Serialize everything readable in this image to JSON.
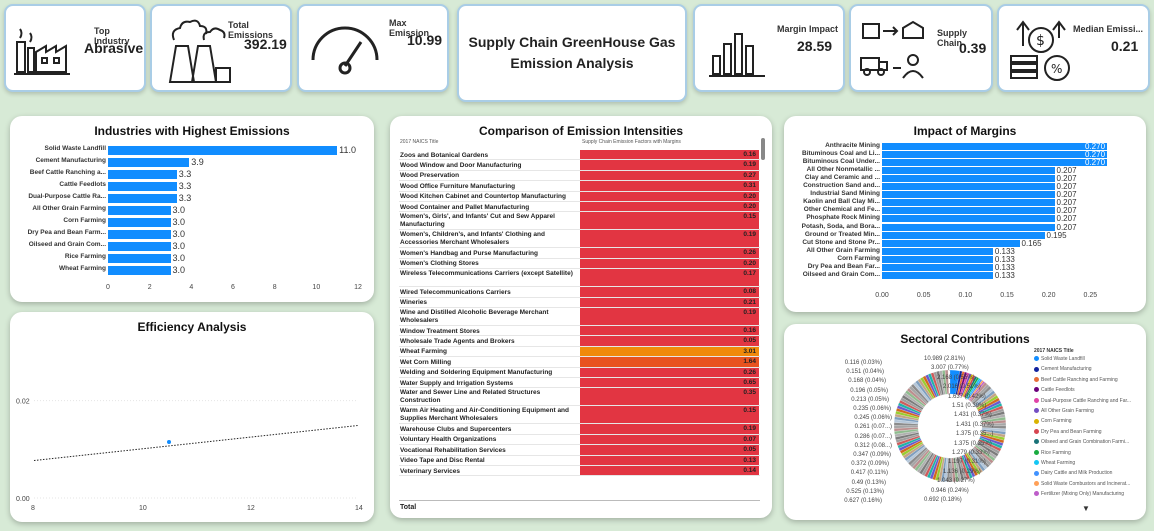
{
  "kpis": {
    "top_industry": {
      "label": "Top Industry",
      "value": "Abrasive"
    },
    "total_emissions": {
      "label": "Total Emissions",
      "value": "392.19"
    },
    "max_emission": {
      "label": "Max Emission",
      "value": "10.99"
    },
    "margin_impact": {
      "label": "Margin Impact",
      "value": "28.59"
    },
    "supply_chain": {
      "label": "Supply Chain",
      "value": "0.39"
    },
    "median_emission": {
      "label": "Median Emissi...",
      "value": "0.21"
    }
  },
  "dashboard_title": "Supply Chain GreenHouse Gas Emission Analysis",
  "industries_chart": {
    "title": "Industries with Highest Emissions",
    "ticks": [
      "0",
      "2",
      "4",
      "6",
      "8",
      "10",
      "12"
    ]
  },
  "efficiency": {
    "title": "Efficiency Analysis",
    "yticks": [
      "0.02",
      "0.00"
    ],
    "xticks": [
      "8",
      "10",
      "12",
      "14"
    ]
  },
  "intensity_table": {
    "title": "Comparison of Emission Intensities",
    "col1": "2017 NAICS Title",
    "col2": "Supply Chain Emission Factors with Margins",
    "rows": [
      {
        "name": "Zoos and Botanical Gardens",
        "value": "0.16",
        "color": "#e23542"
      },
      {
        "name": "Wood Window and Door Manufacturing",
        "value": "0.19",
        "color": "#e23542"
      },
      {
        "name": "Wood Preservation",
        "value": "0.27",
        "color": "#e23542"
      },
      {
        "name": "Wood Office Furniture Manufacturing",
        "value": "0.31",
        "color": "#e23542"
      },
      {
        "name": "Wood Kitchen Cabinet and Countertop Manufacturing",
        "value": "0.20",
        "color": "#e23542"
      },
      {
        "name": "Wood Container and Pallet Manufacturing",
        "value": "0.20",
        "color": "#e23542"
      },
      {
        "name": "Women's, Girls', and Infants' Cut and Sew Apparel Manufacturing",
        "value": "0.15",
        "color": "#e23542"
      },
      {
        "name": "Women's, Children's, and Infants' Clothing and Accessories Merchant Wholesalers",
        "value": "0.19",
        "color": "#e23542"
      },
      {
        "name": "Women's Handbag and Purse Manufacturing",
        "value": "0.26",
        "color": "#e23542"
      },
      {
        "name": "Women's Clothing Stores",
        "value": "0.20",
        "color": "#e23542"
      },
      {
        "name": "Wireless Telecommunications Carriers (except Satellite)",
        "value": "0.17",
        "color": "#e23542"
      },
      {
        "name": "Wired Telecommunications Carriers",
        "value": "0.08",
        "color": "#e23542"
      },
      {
        "name": "Wineries",
        "value": "0.21",
        "color": "#e23542"
      },
      {
        "name": "Wine and Distilled Alcoholic Beverage Merchant Wholesalers",
        "value": "0.19",
        "color": "#e23542"
      },
      {
        "name": "Window Treatment Stores",
        "value": "0.16",
        "color": "#e23542"
      },
      {
        "name": "Wholesale Trade Agents and Brokers",
        "value": "0.05",
        "color": "#e23542"
      },
      {
        "name": "Wheat Farming",
        "value": "3.01",
        "color": "#f08a0a"
      },
      {
        "name": "Wet Corn Milling",
        "value": "1.64",
        "color": "#e8531f"
      },
      {
        "name": "Welding and Soldering Equipment Manufacturing",
        "value": "0.26",
        "color": "#e23542"
      },
      {
        "name": "Water Supply and Irrigation Systems",
        "value": "0.65",
        "color": "#e23542"
      },
      {
        "name": "Water and Sewer Line and Related Structures Construction",
        "value": "0.35",
        "color": "#e23542"
      },
      {
        "name": "Warm Air Heating and Air-Conditioning Equipment and Supplies Merchant Wholesalers",
        "value": "0.15",
        "color": "#e23542"
      },
      {
        "name": "Warehouse Clubs and Supercenters",
        "value": "0.19",
        "color": "#e23542"
      },
      {
        "name": "Voluntary Health Organizations",
        "value": "0.07",
        "color": "#e23542"
      },
      {
        "name": "Vocational Rehabilitation Services",
        "value": "0.05",
        "color": "#e23542"
      },
      {
        "name": "Video Tape and Disc Rental",
        "value": "0.13",
        "color": "#e23542"
      },
      {
        "name": "Veterinary Services",
        "value": "0.14",
        "color": "#e23542"
      }
    ],
    "total_label": "Total"
  },
  "margins_chart": {
    "title": "Impact of Margins",
    "ticks": [
      "0.00",
      "0.05",
      "0.10",
      "0.15",
      "0.20",
      "0.25"
    ]
  },
  "sectoral": {
    "title": "Sectoral Contributions",
    "legend_title": "2017 NAICS Title",
    "legend": [
      {
        "label": "Solid Waste Landfill",
        "color": "#118dff"
      },
      {
        "label": "Cement Manufacturing",
        "color": "#12239e"
      },
      {
        "label": "Beef Cattle Ranching and Farming",
        "color": "#e66c37"
      },
      {
        "label": "Cattle Feedlots",
        "color": "#6b007b"
      },
      {
        "label": "Dual-Purpose Cattle Ranching and Far...",
        "color": "#e044a7"
      },
      {
        "label": "All Other Grain Farming",
        "color": "#744ec2"
      },
      {
        "label": "Corn Farming",
        "color": "#d9b300"
      },
      {
        "label": "Dry Pea and Bean Farming",
        "color": "#d64550"
      },
      {
        "label": "Oilseed and Grain Combination Farmi...",
        "color": "#197278"
      },
      {
        "label": "Rice Farming",
        "color": "#1aab40"
      },
      {
        "label": "Wheat Farming",
        "color": "#15c6f4"
      },
      {
        "label": "Dairy Cattle and Milk Production",
        "color": "#4092ff"
      },
      {
        "label": "Solid Waste Combustors and Incinerat...",
        "color": "#ffa058"
      },
      {
        "label": "Fertilizer (Mixing Only) Manufacturing",
        "color": "#be5dc9"
      }
    ],
    "left_labels": [
      "0.116 (0.03%)",
      "0.151 (0.04%)",
      "0.168 (0.04%)",
      "0.196 (0.05%)",
      "0.213 (0.05%)",
      "0.235 (0.06%)",
      "0.245 (0.06%)",
      "0.261 (0.07...)",
      "0.286 (0.07...)",
      "0.312 (0.08...)",
      "0.347 (0.09%)",
      "0.372 (0.09%)",
      "0.417 (0.11%)",
      "0.49 (0.13%)",
      "0.525 (0.13%)",
      "0.627 (0.16%)"
    ],
    "right_labels": [
      "10.989 (2.81%)",
      "3.007 (0.77%)",
      "2.168 (0.55%)",
      "2.016 (0.51%)",
      "1.637 (0.42%)",
      "1.51 (0.39%)",
      "1.431 (0.37%)",
      "1.431 (0.37%)",
      "1.375 (0.35...)",
      "1.375 (0.35%)",
      "1.279 (0.33%)",
      "1.197 (0.31%)",
      "1.136 (0.29%)",
      "1.043 (0.27%)",
      "0.946 (0.24%)",
      "0.692 (0.18%)"
    ]
  },
  "chart_data": [
    {
      "type": "bar",
      "title": "Industries with Highest Emissions",
      "categories": [
        "Solid Waste Landfill",
        "Cement Manufacturing",
        "Beef Cattle Ranching a...",
        "Cattle Feedlots",
        "Dual-Purpose Cattle Ra...",
        "All Other Grain Farming",
        "Corn Farming",
        "Dry Pea and Bean Farm...",
        "Oilseed and Grain Com...",
        "Rice Farming",
        "Wheat Farming"
      ],
      "values": [
        11.0,
        3.9,
        3.3,
        3.3,
        3.3,
        3.0,
        3.0,
        3.0,
        3.0,
        3.0,
        3.0
      ],
      "labels": [
        "11.0",
        "3.9",
        "3.3",
        "3.3",
        "3.3",
        "3.0",
        "3.0",
        "3.0",
        "3.0",
        "3.0",
        "3.0"
      ],
      "xlim": [
        0,
        12
      ],
      "color": "#118dff"
    },
    {
      "type": "bar",
      "title": "Impact of Margins",
      "categories": [
        "Anthracite Mining",
        "Bituminous Coal and Li...",
        "Bituminous Coal Under...",
        "All Other Nonmetallic ...",
        "Clay and Ceramic and ...",
        "Construction Sand and...",
        "Industrial Sand Mining",
        "Kaolin and Ball Clay Mi...",
        "Other Chemical and Fe...",
        "Phosphate Rock Mining",
        "Potash, Soda, and Bora...",
        "Ground or Treated Min...",
        "Cut Stone and Stone Pr...",
        "All Other Grain Farming",
        "Corn Farming",
        "Dry Pea and Bean Far...",
        "Oilseed and Grain Com..."
      ],
      "values": [
        0.27,
        0.27,
        0.27,
        0.207,
        0.207,
        0.207,
        0.207,
        0.207,
        0.207,
        0.207,
        0.207,
        0.195,
        0.165,
        0.133,
        0.133,
        0.133,
        0.133
      ],
      "labels": [
        "0.270",
        "0.270",
        "0.270",
        "0.207",
        "0.207",
        "0.207",
        "0.207",
        "0.207",
        "0.207",
        "0.207",
        "0.207",
        "0.195",
        "0.165",
        "0.133",
        "0.133",
        "0.133",
        "0.133"
      ],
      "xlim": [
        0,
        0.3
      ],
      "color": "#118dff"
    },
    {
      "type": "scatter",
      "title": "Efficiency Analysis",
      "xlim": [
        8,
        14
      ],
      "ylim": [
        0,
        0.03
      ],
      "points": [
        {
          "x": 10.5,
          "y": 0.0115
        }
      ],
      "trendline": {
        "x": [
          8,
          14
        ],
        "y": [
          0.0077,
          0.0149
        ]
      }
    }
  ]
}
